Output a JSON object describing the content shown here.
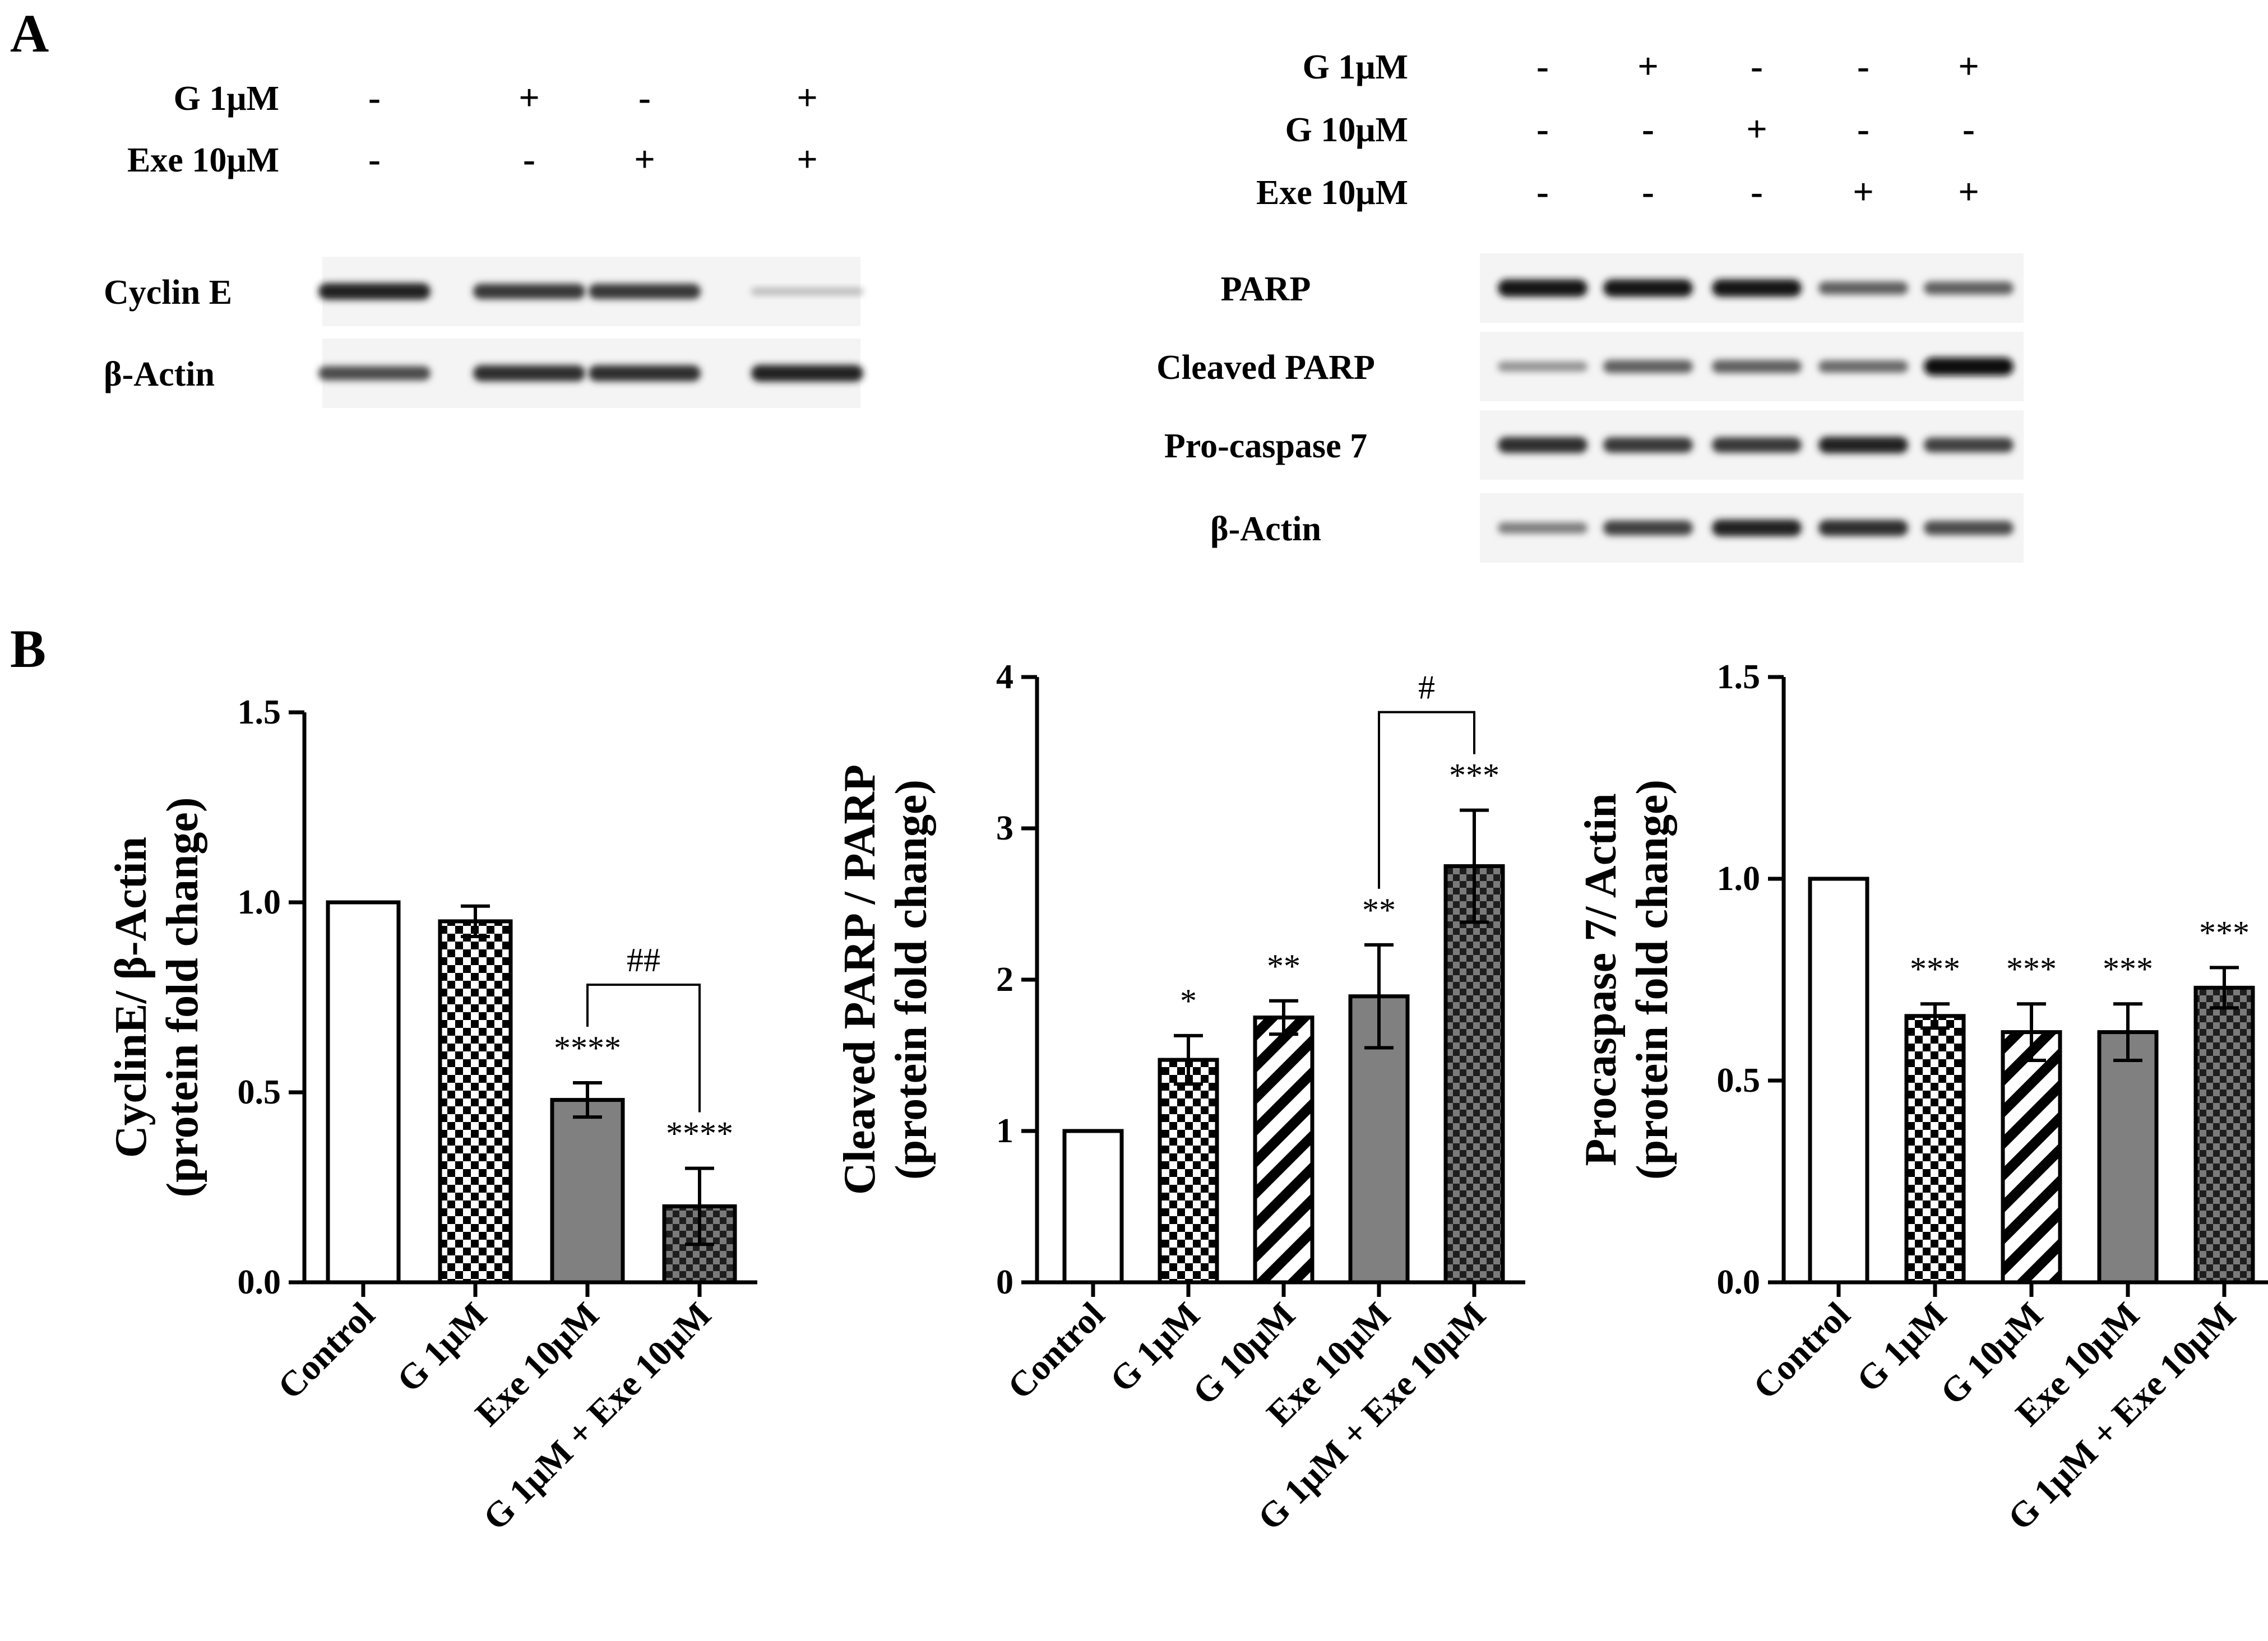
{
  "panel_a": {
    "letter": "A",
    "left": {
      "conditions": [
        {
          "label": "G 1μM",
          "signs": [
            "-",
            "+",
            "-",
            "+"
          ]
        },
        {
          "label": "Exe 10μM",
          "signs": [
            "-",
            "-",
            "+",
            "+"
          ]
        }
      ],
      "blots": [
        {
          "label": "Cyclin E",
          "intensities": [
            0.9,
            0.8,
            0.8,
            0.15
          ]
        },
        {
          "label": "β-Actin",
          "intensities": [
            0.7,
            0.85,
            0.85,
            0.9
          ]
        }
      ]
    },
    "right": {
      "conditions": [
        {
          "label": "G 1μM",
          "signs": [
            "-",
            "+",
            "-",
            "-",
            "+"
          ]
        },
        {
          "label": "G 10μM",
          "signs": [
            "-",
            "-",
            "+",
            "-",
            "-"
          ]
        },
        {
          "label": "Exe 10μM",
          "signs": [
            "-",
            "-",
            "-",
            "+",
            "+"
          ]
        }
      ],
      "blots": [
        {
          "label": "PARP",
          "intensities": [
            0.95,
            0.95,
            0.95,
            0.6,
            0.6
          ]
        },
        {
          "label": "Cleaved PARP",
          "intensities": [
            0.35,
            0.6,
            0.6,
            0.55,
            1.0
          ]
        },
        {
          "label": "Pro-caspase 7",
          "intensities": [
            0.85,
            0.8,
            0.8,
            0.9,
            0.75
          ]
        },
        {
          "label": "β-Actin",
          "intensities": [
            0.45,
            0.75,
            0.9,
            0.85,
            0.7
          ]
        }
      ]
    }
  },
  "panel_b": {
    "letter": "B"
  },
  "chart_data": [
    {
      "type": "bar",
      "categories": [
        "Control",
        "G 1μM",
        "Exe 10μM",
        "G 1μM + Exe 10μM"
      ],
      "values": [
        1.0,
        0.95,
        0.48,
        0.2
      ],
      "errors": [
        0,
        0.04,
        0.045,
        0.1
      ],
      "patterns": [
        "white",
        "checker",
        "gray",
        "darkchecker"
      ],
      "significance": [
        "",
        "",
        "****",
        "****"
      ],
      "bracket": {
        "from": 2,
        "to": 3,
        "label": "##"
      },
      "ylabel_lines": [
        "CyclinE/ β-Actin",
        "(protein fold change)"
      ],
      "ylim": [
        0,
        1.5
      ],
      "yticks": [
        0,
        0.5,
        1.0,
        1.5
      ],
      "ytick_labels": [
        "0.0",
        "0.5",
        "1.0",
        "1.5"
      ]
    },
    {
      "type": "bar",
      "categories": [
        "Control",
        "G 1μM",
        "G 10μM",
        "Exe 10μM",
        "G 1μM + Exe 10μM"
      ],
      "values": [
        1.0,
        1.47,
        1.75,
        1.89,
        2.75
      ],
      "errors": [
        0,
        0.16,
        0.11,
        0.34,
        0.37
      ],
      "patterns": [
        "white",
        "checker",
        "diagonal",
        "gray",
        "darkchecker"
      ],
      "significance": [
        "",
        "*",
        "**",
        "**",
        "***"
      ],
      "bracket": {
        "from": 3,
        "to": 4,
        "label": "#"
      },
      "ylabel_lines": [
        "Cleaved PARP / PARP",
        "(protein fold change)"
      ],
      "ylim": [
        0,
        4
      ],
      "yticks": [
        0,
        1,
        2,
        3,
        4
      ],
      "ytick_labels": [
        "0",
        "1",
        "2",
        "3",
        "4"
      ]
    },
    {
      "type": "bar",
      "categories": [
        "Control",
        "G 1μM",
        "G 10μM",
        "Exe 10μM",
        "G 1μM + Exe 10μM"
      ],
      "values": [
        1.0,
        0.66,
        0.62,
        0.62,
        0.73
      ],
      "errors": [
        0,
        0.03,
        0.07,
        0.07,
        0.05
      ],
      "patterns": [
        "white",
        "checker",
        "diagonal",
        "gray",
        "darkchecker"
      ],
      "significance": [
        "",
        "***",
        "***",
        "***",
        "***"
      ],
      "bracket": null,
      "ylabel_lines": [
        "Procaspase 7/ Actin",
        "(protein fold change)"
      ],
      "ylim": [
        0,
        1.5
      ],
      "yticks": [
        0,
        0.5,
        1.0,
        1.5
      ],
      "ytick_labels": [
        "0.0",
        "0.5",
        "1.0",
        "1.5"
      ]
    }
  ]
}
